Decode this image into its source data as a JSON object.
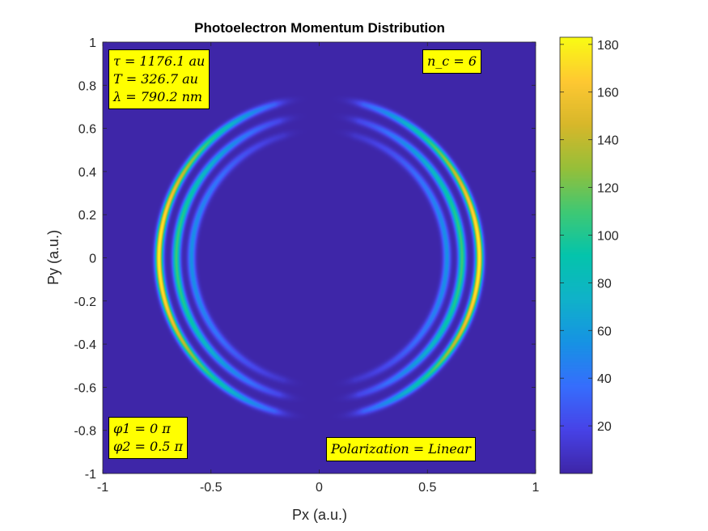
{
  "chart_data": {
    "type": "heatmap",
    "title": "Photoelectron Momentum Distribution",
    "xlabel": "Px (a.u.)",
    "ylabel": "Py (a.u.)",
    "xlim": [
      -1,
      1
    ],
    "ylim": [
      -1,
      1
    ],
    "xticks": [
      "-1",
      "-0.5",
      "0",
      "0.5",
      "1"
    ],
    "yticks": [
      "1",
      "0.8",
      "0.6",
      "0.4",
      "0.2",
      "0",
      "-0.2",
      "-0.4",
      "-0.6",
      "-0.8",
      "-1"
    ],
    "colorbar": {
      "colormap": "parula",
      "range": [
        0,
        183
      ],
      "ticks": [
        "20",
        "40",
        "60",
        "80",
        "100",
        "120",
        "140",
        "160",
        "180"
      ]
    },
    "distribution": {
      "description_values": "concentric ring shells centered at origin, strongest along Px axis",
      "ring_radii": [
        0.74,
        0.66,
        0.59
      ],
      "ring_peaks": [
        183,
        110,
        55
      ],
      "ring_width": 0.012,
      "angular_gap_deg_around_py_axis": 16
    },
    "annotations": {
      "pulse_params": [
        "τ = 1176.1 au",
        "T = 326.7 au",
        "λ = 790.2 nm"
      ],
      "cycles": "n_c = 6",
      "phases": [
        "φ1 = 0 π",
        "φ2 = 0.5 π"
      ],
      "polarization": "Polarization = Linear"
    }
  }
}
